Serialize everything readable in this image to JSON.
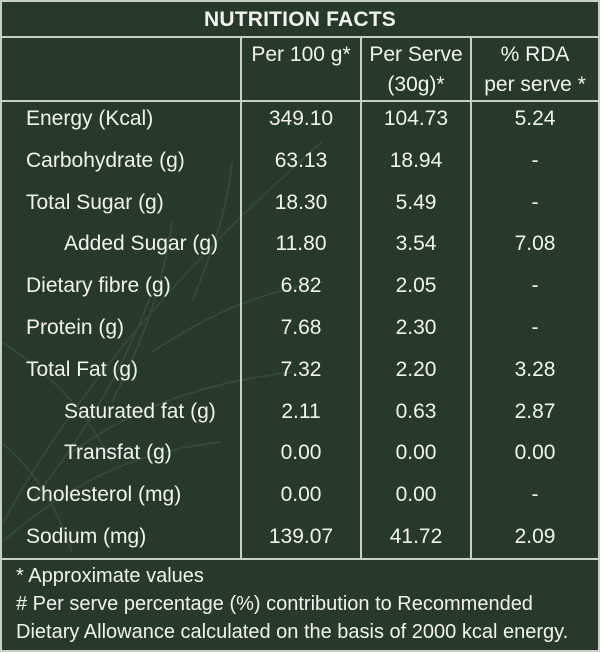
{
  "title": "NUTRITION FACTS",
  "headers": {
    "per100": [
      "Per 100 g*"
    ],
    "perServe": [
      "Per Serve",
      "(30g)*"
    ],
    "rda": [
      "% RDA",
      "per serve *"
    ]
  },
  "rows": [
    {
      "label": "Energy (Kcal)",
      "per100": "349.10",
      "perServe": "104.73",
      "rda": "5.24",
      "indent": false
    },
    {
      "label": "Carbohydrate (g)",
      "per100": "63.13",
      "perServe": "18.94",
      "rda": "-",
      "indent": false
    },
    {
      "label": "Total Sugar (g)",
      "per100": "18.30",
      "perServe": "5.49",
      "rda": "-",
      "indent": false
    },
    {
      "label": "Added Sugar (g)",
      "per100": "11.80",
      "perServe": "3.54",
      "rda": "7.08",
      "indent": true
    },
    {
      "label": "Dietary fibre (g)",
      "per100": "6.82",
      "perServe": "2.05",
      "rda": "-",
      "indent": false
    },
    {
      "label": "Protein (g)",
      "per100": "7.68",
      "perServe": "2.30",
      "rda": "-",
      "indent": false
    },
    {
      "label": "Total Fat (g)",
      "per100": "7.32",
      "perServe": "2.20",
      "rda": "3.28",
      "indent": false
    },
    {
      "label": "Saturated fat (g)",
      "per100": "2.11",
      "perServe": "0.63",
      "rda": "2.87",
      "indent": true
    },
    {
      "label": "Transfat (g)",
      "per100": "0.00",
      "perServe": "0.00",
      "rda": "0.00",
      "indent": true
    },
    {
      "label": "Cholesterol (mg)",
      "per100": "0.00",
      "perServe": "0.00",
      "rda": "-",
      "indent": false
    },
    {
      "label": "Sodium (mg)",
      "per100": "139.07",
      "perServe": "41.72",
      "rda": "2.09",
      "indent": false
    }
  ],
  "footer": [
    "* Approximate values",
    "# Per serve percentage (%) contribution to Recommended",
    "Dietary Allowance calculated on the basis of 2000 kcal energy."
  ],
  "colors": {
    "background": "#27392a",
    "rule": "#c9cfc6",
    "text": "#f2f2ee"
  }
}
